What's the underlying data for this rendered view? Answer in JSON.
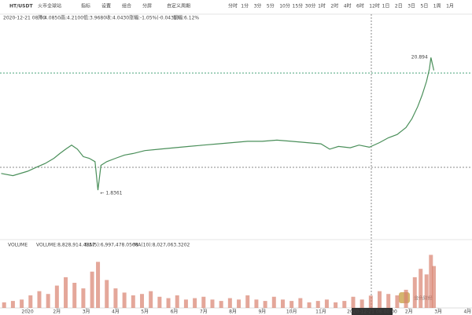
{
  "toolbar": {
    "symbol": "HT/USDT",
    "exchange": "火币全球站",
    "tools": [
      "指标",
      "设置",
      "组合",
      "分屏"
    ],
    "custom": "自定义周期",
    "periods": [
      "分时",
      "1分",
      "3分",
      "5分",
      "10分",
      "15分",
      "30分",
      "1时",
      "2时",
      "4时",
      "6时",
      "12时",
      "1日",
      "2日",
      "3日",
      "5日",
      "1周",
      "1月"
    ]
  },
  "info": {
    "date": "2020-12-21 08:00",
    "items": [
      "开:4.0850",
      "高:4.2100",
      "低:3.9680",
      "收:4.0430",
      "涨幅:-1.05%(-0.0431)",
      "振幅:6.12%"
    ]
  },
  "crosshair": {
    "label": "2020-12-21 08:00:00"
  },
  "watermark": "金色财经",
  "chart_data": [
    {
      "type": "line",
      "log": true,
      "color": "#4a8f5a",
      "xlim": [
        -0.94,
        15.15
      ],
      "ylim": [
        0.8,
        40
      ],
      "x": [
        -0.9,
        -0.5,
        0,
        0.3,
        0.6,
        0.9,
        1.1,
        1.3,
        1.5,
        1.7,
        1.9,
        2.1,
        2.3,
        2.4,
        2.5,
        2.7,
        3,
        3.3,
        3.6,
        4,
        4.5,
        5,
        5.5,
        6,
        6.5,
        7,
        7.5,
        8,
        8.5,
        9,
        9.5,
        10,
        10.3,
        10.6,
        11,
        11.3,
        11.65,
        12,
        12.3,
        12.6,
        12.9,
        13.1,
        13.3,
        13.45,
        13.6,
        13.7,
        13.75,
        13.8,
        13.85
      ],
      "values": [
        2.5,
        2.4,
        2.6,
        2.8,
        3.0,
        3.3,
        3.6,
        3.9,
        4.2,
        3.9,
        3.4,
        3.3,
        3.1,
        1.84,
        2.9,
        3.1,
        3.3,
        3.5,
        3.6,
        3.8,
        3.9,
        4.0,
        4.1,
        4.2,
        4.3,
        4.4,
        4.5,
        4.5,
        4.6,
        4.5,
        4.4,
        4.3,
        3.9,
        4.1,
        4.0,
        4.2,
        4.04,
        4.4,
        4.8,
        5.1,
        5.8,
        6.8,
        8.5,
        10.5,
        13.5,
        17,
        20.894,
        18.5,
        16.5
      ],
      "annotations": [
        {
          "text": "20.894",
          "x": 13.75,
          "y": 20.894
        },
        {
          "text": "← 1.8361",
          "x": 2.4,
          "y": 1.8361
        }
      ]
    },
    {
      "type": "bar",
      "title": "VOLUME",
      "color": "#d9826f",
      "xlim": [
        -0.94,
        15.15
      ],
      "ylim": [
        0,
        45000000
      ],
      "legend": [
        {
          "text": "VOLUME:8,828,914.4257",
          "color": "#555"
        },
        {
          "text": "MA(5):6,997,478.0568",
          "color": "#8cbf6a"
        },
        {
          "text": "MA(10):8,027,063.3202",
          "color": "#e0b050"
        }
      ],
      "x": [
        -0.8,
        -0.5,
        -0.2,
        0.1,
        0.4,
        0.7,
        1,
        1.3,
        1.6,
        1.9,
        2.2,
        2.4,
        2.7,
        3,
        3.3,
        3.6,
        3.9,
        4.2,
        4.5,
        4.8,
        5.1,
        5.4,
        5.7,
        6,
        6.3,
        6.6,
        6.9,
        7.2,
        7.5,
        7.8,
        8.1,
        8.4,
        8.7,
        9,
        9.3,
        9.6,
        9.9,
        10.2,
        10.5,
        10.8,
        11.1,
        11.4,
        11.7,
        12,
        12.3,
        12.6,
        12.9,
        13.2,
        13.4,
        13.6,
        13.75,
        13.85
      ],
      "values": [
        4000000,
        5000000,
        6000000,
        9000000,
        12000000,
        10000000,
        16000000,
        22000000,
        18000000,
        14000000,
        26000000,
        33000000,
        20000000,
        14000000,
        11000000,
        9000000,
        10000000,
        12000000,
        8000000,
        7000000,
        9000000,
        6000000,
        7000000,
        8000000,
        6000000,
        5000000,
        7000000,
        6000000,
        9000000,
        6000000,
        5000000,
        8000000,
        6000000,
        5000000,
        7000000,
        4000000,
        5000000,
        6000000,
        4000000,
        5000000,
        8000000,
        6000000,
        8828914,
        12000000,
        10000000,
        9000000,
        13000000,
        22000000,
        28000000,
        24000000,
        38000000,
        30000000
      ],
      "xticks": [
        {
          "value": 0,
          "label": "2020"
        },
        {
          "value": 1,
          "label": "2月"
        },
        {
          "value": 2,
          "label": "3月"
        },
        {
          "value": 3,
          "label": "4月"
        },
        {
          "value": 4,
          "label": "5月"
        },
        {
          "value": 5,
          "label": "6月"
        },
        {
          "value": 6,
          "label": "7月"
        },
        {
          "value": 7,
          "label": "8月"
        },
        {
          "value": 8,
          "label": "9月"
        },
        {
          "value": 9,
          "label": "10月"
        },
        {
          "value": 10,
          "label": "11月"
        },
        {
          "value": 13,
          "label": "2月"
        },
        {
          "value": 14,
          "label": "3月"
        },
        {
          "value": 15,
          "label": "4月"
        }
      ]
    }
  ]
}
